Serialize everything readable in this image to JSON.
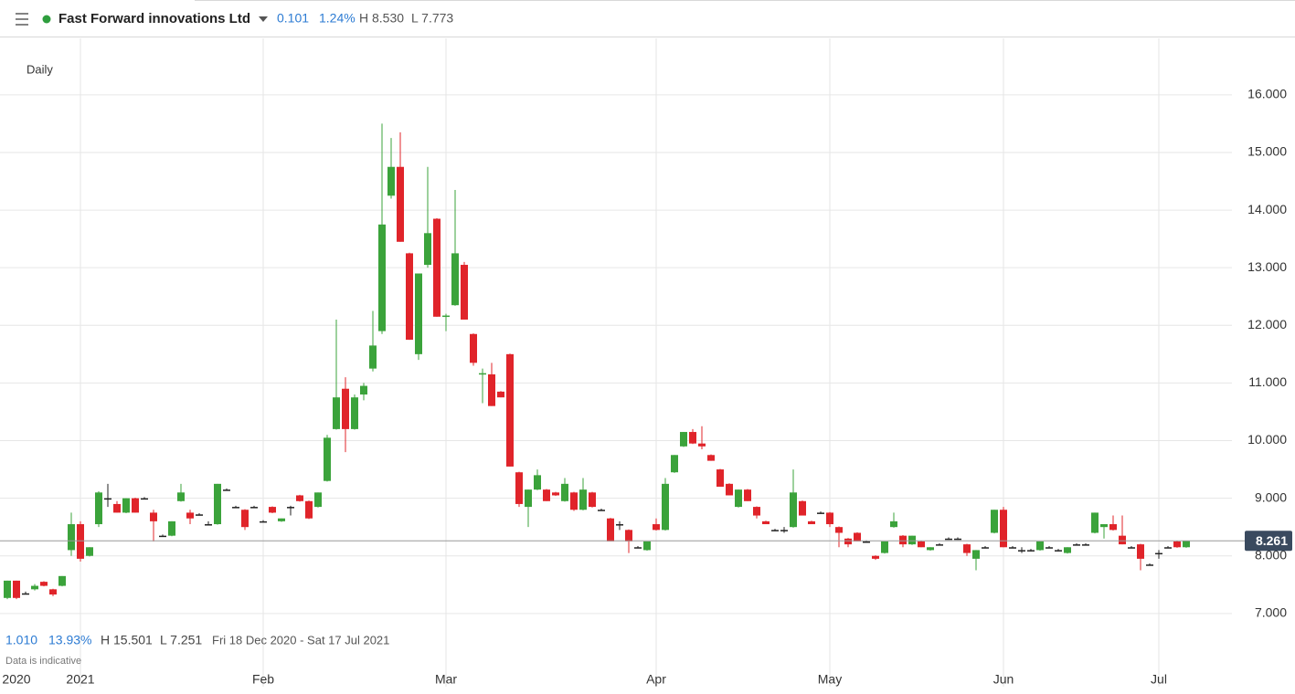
{
  "header": {
    "instrument": "Fast Forward innovations Ltd",
    "change": "0.101",
    "change_pct": "1.24%",
    "high": "H 8.530",
    "low": "L 7.773"
  },
  "interval": "Daily",
  "footer": {
    "change": "1.010",
    "change_pct": "13.93%",
    "high": "H 15.501",
    "low": "L 7.251",
    "range": "Fri 18 Dec 2020 - Sat 17 Jul 2021",
    "note": "Data is indicative"
  },
  "chart_data": {
    "type": "candlestick",
    "up_color": "#3ba33b",
    "down_color": "#e0242a",
    "doji_color": "#222222",
    "ylim": [
      5.73,
      16.98
    ],
    "yticks": [
      {
        "value": 7,
        "label": "7.000"
      },
      {
        "value": 8,
        "label": "8.000"
      },
      {
        "value": 9,
        "label": "9.000"
      },
      {
        "value": 10,
        "label": "10.000"
      },
      {
        "value": 11,
        "label": "11.000"
      },
      {
        "value": 12,
        "label": "12.000"
      },
      {
        "value": 13,
        "label": "13.000"
      },
      {
        "value": 14,
        "label": "14.000"
      },
      {
        "value": 15,
        "label": "15.000"
      },
      {
        "value": 16,
        "label": "16.000"
      }
    ],
    "grid": true,
    "last_price": {
      "value": 8.261,
      "label": "8.261"
    },
    "categories": [
      null,
      "2020",
      null,
      null,
      null,
      null,
      null,
      null,
      "2021",
      null,
      null,
      null,
      null,
      null,
      null,
      null,
      null,
      null,
      null,
      null,
      null,
      null,
      null,
      null,
      null,
      null,
      null,
      null,
      "Feb",
      null,
      null,
      null,
      null,
      null,
      null,
      null,
      null,
      null,
      null,
      null,
      null,
      null,
      null,
      null,
      null,
      null,
      null,
      null,
      "Mar",
      null,
      null,
      null,
      null,
      null,
      null,
      null,
      null,
      null,
      null,
      null,
      null,
      null,
      null,
      null,
      null,
      null,
      null,
      null,
      null,
      null,
      null,
      "Apr",
      null,
      null,
      null,
      null,
      null,
      null,
      null,
      null,
      null,
      null,
      null,
      null,
      null,
      null,
      null,
      null,
      null,
      null,
      "May",
      null,
      null,
      null,
      null,
      null,
      null,
      null,
      null,
      null,
      null,
      null,
      null,
      null,
      null,
      null,
      null,
      null,
      null,
      "Jun",
      null,
      null,
      null,
      null,
      null,
      null,
      null,
      null,
      null,
      null,
      null,
      null,
      null,
      null,
      null,
      null,
      "Jul",
      null,
      null,
      null
    ],
    "ohlc": [
      [
        7.27,
        7.57,
        7.25,
        7.57
      ],
      [
        7.57,
        7.57,
        7.25,
        7.27
      ],
      [
        7.35,
        7.38,
        7.33,
        7.35
      ],
      [
        7.42,
        7.51,
        7.4,
        7.48
      ],
      [
        7.55,
        7.56,
        7.47,
        7.48
      ],
      [
        7.42,
        7.43,
        7.3,
        7.33
      ],
      [
        7.48,
        7.65,
        7.47,
        7.65
      ],
      [
        8.1,
        8.75,
        8.0,
        8.55
      ],
      [
        8.55,
        8.6,
        7.9,
        7.95
      ],
      [
        8.0,
        8.15,
        7.99,
        8.15
      ],
      [
        8.55,
        9.12,
        8.5,
        9.1
      ],
      [
        9.0,
        9.25,
        8.85,
        9.0
      ],
      [
        8.9,
        8.95,
        8.75,
        8.75
      ],
      [
        8.75,
        9.0,
        8.74,
        9.0
      ],
      [
        9.0,
        9.01,
        8.75,
        8.75
      ],
      [
        9.0,
        9.02,
        8.98,
        9.0
      ],
      [
        8.75,
        8.8,
        8.25,
        8.6
      ],
      [
        8.35,
        8.37,
        8.33,
        8.35
      ],
      [
        8.35,
        8.6,
        8.34,
        8.6
      ],
      [
        8.95,
        9.25,
        8.94,
        9.1
      ],
      [
        8.75,
        8.8,
        8.55,
        8.65
      ],
      [
        8.72,
        8.74,
        8.7,
        8.72
      ],
      [
        8.55,
        8.6,
        8.53,
        8.55
      ],
      [
        8.55,
        9.25,
        8.54,
        9.25
      ],
      [
        9.15,
        9.17,
        9.13,
        9.15
      ],
      [
        8.85,
        8.87,
        8.83,
        8.85
      ],
      [
        8.8,
        8.81,
        8.45,
        8.5
      ],
      [
        8.85,
        8.87,
        8.83,
        8.85
      ],
      [
        8.6,
        8.62,
        8.58,
        8.6
      ],
      [
        8.85,
        8.86,
        8.74,
        8.75
      ],
      [
        8.6,
        8.65,
        8.59,
        8.65
      ],
      [
        8.85,
        8.87,
        8.7,
        8.85
      ],
      [
        9.05,
        9.06,
        8.94,
        8.95
      ],
      [
        8.95,
        8.96,
        8.64,
        8.65
      ],
      [
        8.85,
        9.1,
        8.84,
        9.1
      ],
      [
        9.3,
        10.1,
        9.29,
        10.05
      ],
      [
        10.2,
        12.1,
        10.19,
        10.75
      ],
      [
        10.9,
        11.1,
        9.8,
        10.2
      ],
      [
        10.2,
        10.8,
        10.19,
        10.75
      ],
      [
        10.8,
        11.0,
        10.7,
        10.95
      ],
      [
        11.25,
        12.25,
        11.2,
        11.65
      ],
      [
        11.9,
        15.5,
        11.85,
        13.75
      ],
      [
        14.25,
        15.25,
        14.2,
        14.75
      ],
      [
        14.75,
        15.35,
        13.45,
        13.45
      ],
      [
        13.25,
        13.26,
        11.75,
        11.75
      ],
      [
        11.5,
        12.9,
        11.4,
        12.9
      ],
      [
        13.05,
        14.75,
        13.0,
        13.6
      ],
      [
        13.85,
        13.86,
        12.15,
        12.15
      ],
      [
        12.15,
        12.2,
        11.9,
        12.17
      ],
      [
        12.35,
        14.35,
        12.34,
        13.25
      ],
      [
        13.05,
        13.1,
        12.1,
        12.1
      ],
      [
        11.85,
        11.86,
        11.3,
        11.35
      ],
      [
        11.15,
        11.25,
        10.65,
        11.17
      ],
      [
        11.15,
        11.35,
        10.6,
        10.6
      ],
      [
        10.85,
        10.86,
        10.75,
        10.75
      ],
      [
        11.5,
        11.51,
        9.55,
        9.55
      ],
      [
        9.45,
        9.46,
        8.85,
        8.9
      ],
      [
        8.85,
        9.15,
        8.5,
        9.15
      ],
      [
        9.15,
        9.5,
        9.14,
        9.4
      ],
      [
        9.15,
        9.16,
        8.95,
        8.95
      ],
      [
        9.1,
        9.11,
        9.04,
        9.05
      ],
      [
        8.95,
        9.35,
        8.94,
        9.25
      ],
      [
        9.1,
        9.11,
        8.78,
        8.8
      ],
      [
        8.8,
        9.35,
        8.79,
        9.15
      ],
      [
        9.1,
        9.11,
        8.84,
        8.85
      ],
      [
        8.8,
        8.82,
        8.78,
        8.8
      ],
      [
        8.65,
        8.66,
        8.25,
        8.25
      ],
      [
        8.55,
        8.6,
        8.45,
        8.55
      ],
      [
        8.45,
        8.46,
        8.05,
        8.25
      ],
      [
        8.15,
        8.17,
        8.13,
        8.15
      ],
      [
        8.1,
        8.25,
        8.09,
        8.25
      ],
      [
        8.55,
        8.65,
        8.44,
        8.45
      ],
      [
        8.45,
        9.35,
        8.44,
        9.25
      ],
      [
        9.45,
        9.75,
        9.44,
        9.75
      ],
      [
        9.9,
        10.15,
        9.89,
        10.15
      ],
      [
        10.15,
        10.2,
        9.94,
        9.95
      ],
      [
        9.95,
        10.25,
        9.85,
        9.9
      ],
      [
        9.75,
        9.76,
        9.65,
        9.65
      ],
      [
        9.5,
        9.51,
        9.2,
        9.2
      ],
      [
        9.25,
        9.26,
        9.05,
        9.05
      ],
      [
        8.85,
        9.15,
        8.84,
        9.15
      ],
      [
        9.15,
        9.16,
        8.95,
        8.95
      ],
      [
        8.85,
        8.86,
        8.65,
        8.7
      ],
      [
        8.6,
        8.61,
        8.55,
        8.55
      ],
      [
        8.45,
        8.47,
        8.43,
        8.45
      ],
      [
        8.45,
        8.5,
        8.4,
        8.45
      ],
      [
        8.5,
        9.5,
        8.49,
        9.1
      ],
      [
        8.95,
        8.96,
        8.7,
        8.7
      ],
      [
        8.6,
        8.61,
        8.55,
        8.55
      ],
      [
        8.75,
        8.77,
        8.73,
        8.75
      ],
      [
        8.75,
        8.76,
        8.5,
        8.55
      ],
      [
        8.5,
        8.51,
        8.15,
        8.4
      ],
      [
        8.3,
        8.31,
        8.15,
        8.2
      ],
      [
        8.4,
        8.41,
        8.25,
        8.25
      ],
      [
        8.25,
        8.27,
        8.23,
        8.25
      ],
      [
        8.0,
        8.01,
        7.93,
        7.95
      ],
      [
        8.05,
        8.25,
        8.04,
        8.25
      ],
      [
        8.5,
        8.75,
        8.49,
        8.6
      ],
      [
        8.35,
        8.36,
        8.15,
        8.2
      ],
      [
        8.2,
        8.35,
        8.19,
        8.35
      ],
      [
        8.25,
        8.26,
        8.15,
        8.15
      ],
      [
        8.1,
        8.15,
        8.09,
        8.15
      ],
      [
        8.2,
        8.22,
        8.18,
        8.2
      ],
      [
        8.3,
        8.32,
        8.28,
        8.3
      ],
      [
        8.3,
        8.32,
        8.28,
        8.3
      ],
      [
        8.2,
        8.21,
        8.0,
        8.05
      ],
      [
        7.95,
        8.1,
        7.75,
        8.1
      ],
      [
        8.15,
        8.17,
        8.13,
        8.15
      ],
      [
        8.4,
        8.8,
        8.39,
        8.8
      ],
      [
        8.8,
        8.85,
        8.15,
        8.15
      ],
      [
        8.15,
        8.17,
        8.13,
        8.15
      ],
      [
        8.1,
        8.15,
        8.05,
        8.1
      ],
      [
        8.1,
        8.12,
        8.08,
        8.1
      ],
      [
        8.1,
        8.25,
        8.09,
        8.25
      ],
      [
        8.15,
        8.17,
        8.13,
        8.15
      ],
      [
        8.1,
        8.12,
        8.08,
        8.1
      ],
      [
        8.05,
        8.15,
        8.04,
        8.15
      ],
      [
        8.2,
        8.22,
        8.18,
        8.2
      ],
      [
        8.2,
        8.22,
        8.18,
        8.2
      ],
      [
        8.4,
        8.75,
        8.39,
        8.75
      ],
      [
        8.5,
        8.55,
        8.3,
        8.55
      ],
      [
        8.55,
        8.7,
        8.44,
        8.45
      ],
      [
        8.35,
        8.7,
        8.2,
        8.2
      ],
      [
        8.15,
        8.17,
        8.13,
        8.15
      ],
      [
        8.2,
        8.21,
        7.75,
        7.95
      ],
      [
        7.85,
        7.87,
        7.83,
        7.85
      ],
      [
        8.05,
        8.1,
        7.95,
        8.05
      ],
      [
        8.15,
        8.17,
        8.13,
        8.15
      ],
      [
        8.25,
        8.26,
        8.14,
        8.15
      ],
      [
        8.15,
        8.26,
        8.14,
        8.261
      ]
    ]
  }
}
